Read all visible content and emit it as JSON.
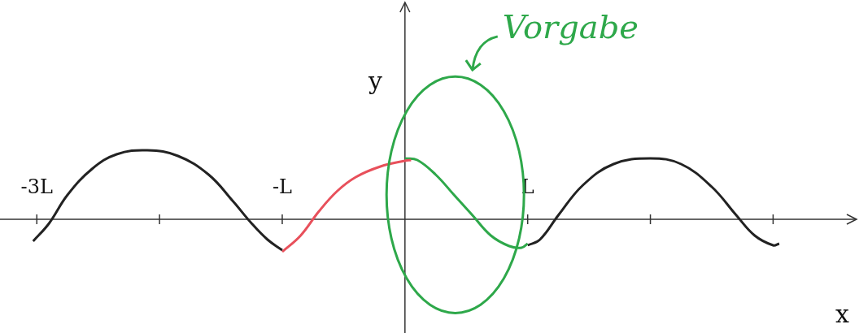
{
  "chart_data": {
    "type": "line",
    "x_label": "x",
    "y_label": "y",
    "xlim": [
      -3.3,
      3.7
    ],
    "ylim": [
      -1.4,
      2.7
    ],
    "xticks": [
      {
        "value": -3,
        "label": "-3L"
      },
      {
        "value": -2,
        "label": null
      },
      {
        "value": -1,
        "label": "-L"
      },
      {
        "value": 1,
        "label": "L"
      },
      {
        "value": 2,
        "label": null
      },
      {
        "value": 3,
        "label": null
      }
    ],
    "yticks": [],
    "tick_labels": "x",
    "grid": false,
    "series": [
      {
        "color": "#222222",
        "line_style": "solid",
        "x": [
          -3.03,
          -2.9,
          -2.75,
          -2.55,
          -2.35,
          -2.1,
          -1.85,
          -1.6,
          -1.4,
          -1.25,
          -1.12,
          -1.0
        ],
        "values": [
          -0.27,
          -0.05,
          0.3,
          0.62,
          0.8,
          0.85,
          0.78,
          0.55,
          0.22,
          -0.05,
          -0.25,
          -0.38
        ]
      },
      {
        "color": "#e8505b",
        "line_style": "solid",
        "x": [
          -1.0,
          -0.85,
          -0.7,
          -0.55,
          -0.4,
          -0.2,
          0.0,
          0.05
        ],
        "values": [
          -0.4,
          -0.2,
          0.1,
          0.35,
          0.52,
          0.65,
          0.72,
          0.73
        ]
      },
      {
        "color": "#2ea84a",
        "line_style": "solid",
        "x": [
          0.0,
          0.1,
          0.25,
          0.4,
          0.55,
          0.7,
          0.85,
          0.95,
          1.0
        ],
        "values": [
          0.75,
          0.73,
          0.55,
          0.3,
          0.05,
          -0.2,
          -0.33,
          -0.35,
          -0.3
        ]
      },
      {
        "color": "#222222",
        "line_style": "solid",
        "x": [
          1.0,
          1.1,
          1.25,
          1.45,
          1.7,
          2.0,
          2.25,
          2.5,
          2.7,
          2.85,
          3.0,
          3.05
        ],
        "values": [
          -0.32,
          -0.25,
          0.05,
          0.42,
          0.68,
          0.75,
          0.68,
          0.4,
          0.05,
          -0.2,
          -0.32,
          -0.3
        ]
      }
    ],
    "annotations": [
      {
        "text": "Vorgabe",
        "color": "#2ea84a"
      }
    ]
  }
}
